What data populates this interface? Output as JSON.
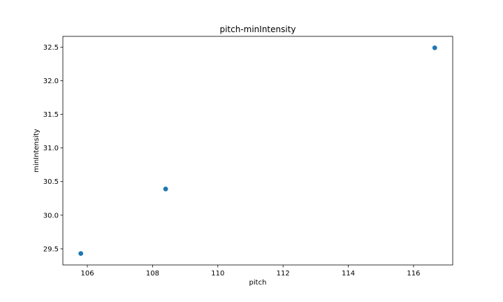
{
  "chart_data": {
    "type": "scatter",
    "title": "pitch-minIntensity",
    "xlabel": "pitch",
    "ylabel": "minIntensity",
    "xlim": [
      105.25,
      117.2
    ],
    "ylim": [
      29.26,
      32.66
    ],
    "xticks": [
      106,
      108,
      110,
      112,
      114,
      116
    ],
    "yticks": [
      29.5,
      30.0,
      30.5,
      31.0,
      31.5,
      32.0,
      32.5
    ],
    "grid": false,
    "series": [
      {
        "x": [
          105.8,
          108.4,
          116.65
        ],
        "y": [
          29.43,
          30.39,
          32.49
        ],
        "color": "#1f77b4"
      }
    ]
  }
}
